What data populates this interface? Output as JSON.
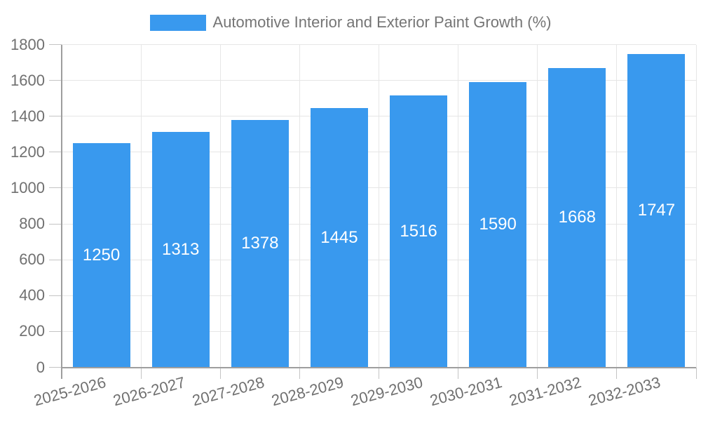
{
  "chart_data": {
    "type": "bar",
    "title": "",
    "legend": {
      "label": "Automotive Interior and Exterior Paint Growth (%)",
      "position": "top"
    },
    "categories": [
      "2025-2026",
      "2026-2027",
      "2027-2028",
      "2028-2029",
      "2029-2030",
      "2030-2031",
      "2031-2032",
      "2032-2033"
    ],
    "values": [
      1250,
      1313,
      1378,
      1445,
      1516,
      1590,
      1668,
      1747
    ],
    "value_labels_shown": true,
    "xlabel": "",
    "ylabel": "",
    "ylim": [
      0,
      1800
    ],
    "ytick_step": 200,
    "yticks": [
      0,
      200,
      400,
      600,
      800,
      1000,
      1200,
      1400,
      1600,
      1800
    ],
    "grid": true,
    "x_label_rotation_deg": -15,
    "colors": {
      "bar": "#3999ee",
      "value_label": "#ffffff",
      "axis_text": "#707070",
      "legend_text": "#757575",
      "grid_line": "#e6e6e6",
      "axis_line": "#9e9e9e",
      "tick_line": "#c4c4c4"
    }
  }
}
